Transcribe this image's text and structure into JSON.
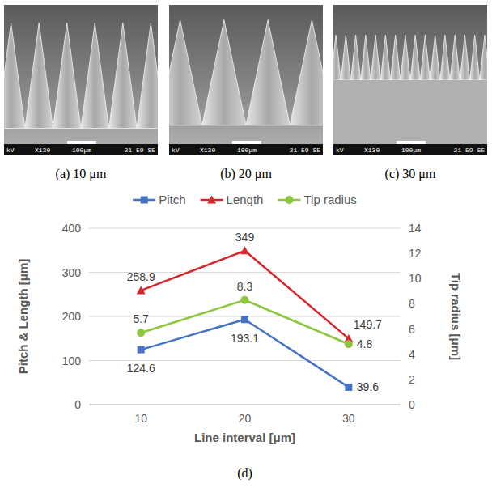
{
  "panels": [
    {
      "caption": "(a) 10 μm",
      "info": [
        "kV",
        "X130",
        "100μm",
        "21 59 SE"
      ]
    },
    {
      "caption": "(b) 20 μm",
      "info": [
        "kV",
        "X130",
        "100μm",
        "21 59 SE"
      ]
    },
    {
      "caption": "(c) 30 μm",
      "info": [
        "kV",
        "X130",
        "100μm",
        "21 59 SE"
      ]
    }
  ],
  "chart_data": {
    "type": "line",
    "caption": "(d)",
    "categories": [
      "10",
      "20",
      "30"
    ],
    "x_label": "Line interval  [μm]",
    "y_label": "Pitch & Length  [μm]",
    "y2_label": "Tip radius  [μm]",
    "ylim": [
      0,
      400
    ],
    "yticks": [
      0,
      100,
      200,
      300,
      400
    ],
    "y2lim": [
      0,
      14
    ],
    "y2ticks": [
      0,
      2,
      4,
      6,
      8,
      10,
      12,
      14
    ],
    "grid": true,
    "legend": "top",
    "data_labels": true,
    "series": [
      {
        "name": "Pitch",
        "color": "#4472c4",
        "marker": "square",
        "values": [
          124.6,
          193.1,
          39.6
        ]
      },
      {
        "name": "Length",
        "color": "#d9262b",
        "marker": "triangle",
        "values": [
          258.9,
          349,
          149.7
        ]
      },
      {
        "name": "Tip radius",
        "color": "#8dc63f",
        "marker": "circle",
        "axis": "y2",
        "values": [
          5.7,
          8.3,
          4.8
        ]
      }
    ]
  }
}
